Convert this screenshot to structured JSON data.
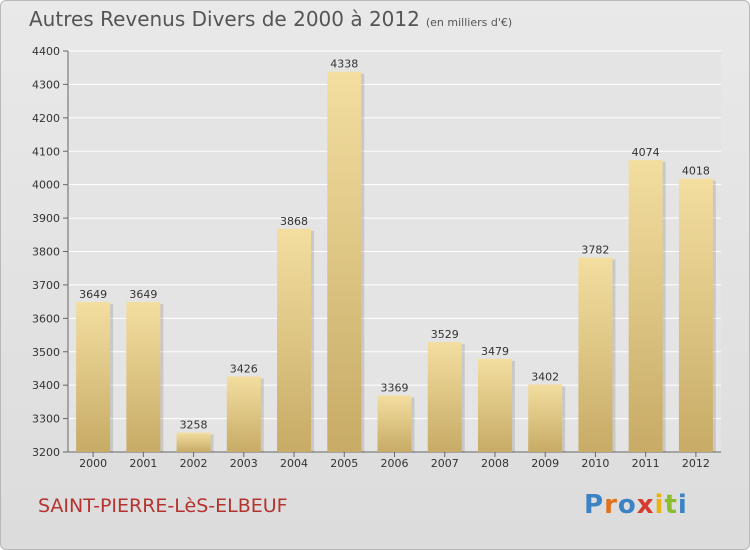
{
  "header": {
    "title": "Autres Revenus Divers de 2000 à 2012",
    "unit": "(en milliers d'€)"
  },
  "footer": {
    "place": "SAINT-PIERRE-LèS-ELBEUF",
    "logo": "Proxiti"
  },
  "colors": {
    "bar_light": "#f3dea0",
    "bar_dark": "#c7ab66",
    "title": "#555555",
    "place": "#b5332e",
    "logo_letters": [
      "#3b83c4",
      "#e2711d",
      "#3b83c4",
      "#d63b2f",
      "#e9b311",
      "#8bbd2c",
      "#3b83c4"
    ]
  },
  "chart_data": {
    "type": "bar",
    "categories": [
      "2000",
      "2001",
      "2002",
      "2003",
      "2004",
      "2005",
      "2006",
      "2007",
      "2008",
      "2009",
      "2010",
      "2011",
      "2012"
    ],
    "values": [
      3649,
      3649,
      3258,
      3426,
      3868,
      4338,
      3369,
      3529,
      3479,
      3402,
      3782,
      4074,
      4018
    ],
    "ylim": [
      3200,
      4400
    ],
    "yticks": [
      3200,
      3300,
      3400,
      3500,
      3600,
      3700,
      3800,
      3900,
      4000,
      4100,
      4200,
      4300,
      4400
    ],
    "grid": true,
    "legend": "none"
  }
}
